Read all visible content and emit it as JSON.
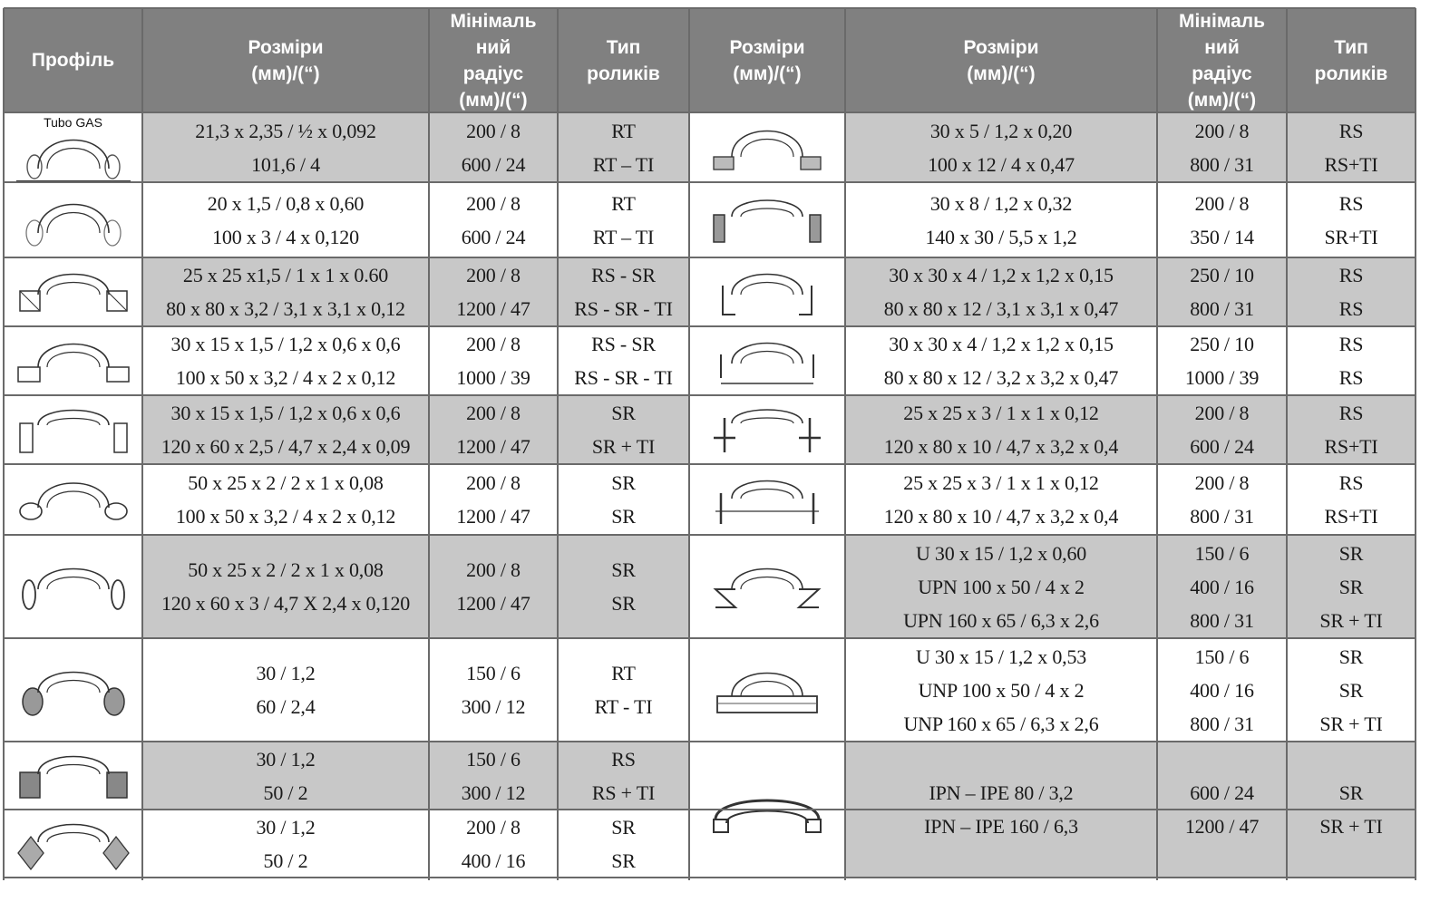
{
  "header": {
    "profile": [
      "Профіль"
    ],
    "sizes_left": [
      "Розміри",
      "(мм)/(“)"
    ],
    "radius_left": [
      "Мінімаль",
      "ний",
      "радіус",
      "(мм)/(“)"
    ],
    "rollers_left": [
      "Тип",
      "роликів"
    ],
    "sizes_mid": [
      "Розміри",
      "(мм)/(“)"
    ],
    "sizes_right": [
      "Розміри",
      "(мм)/(“)"
    ],
    "radius_right": [
      "Мінімаль",
      "ний",
      "радіус",
      "(мм)/(“)"
    ],
    "rollers_right": [
      "Тип",
      "роликів"
    ]
  },
  "tube_gas_label": "Tubo GAS",
  "left_rows": [
    {
      "profile_icon": "round-tube-on-rail-icon",
      "sizes": [
        "21,3 x 2,35 / ½  x 0,092",
        "101,6  /  4"
      ],
      "radius": [
        "200 / 8",
        "600 / 24"
      ],
      "rollers": [
        "RT",
        "RT – TI"
      ],
      "shade": true
    },
    {
      "profile_icon": "round-tube-icon",
      "sizes": [
        "20 x 1,5 / 0,8 x 0,60",
        "100 x 3 / 4 x 0,120"
      ],
      "radius": [
        "200 / 8",
        "600 / 24"
      ],
      "rollers": [
        "RT",
        "RT – TI"
      ],
      "shade": false
    },
    {
      "profile_icon": "square-tube-icon",
      "sizes": [
        "25 x 25 x1,5 / 1 x 1 x 0.60",
        "80 x 80 x 3,2 / 3,1 x 3,1 x 0,12"
      ],
      "radius": [
        "200 / 8",
        "1200 / 47"
      ],
      "rollers": [
        "RS - SR",
        "RS - SR - TI"
      ],
      "shade": true
    },
    {
      "profile_icon": "rect-tube-flat-icon",
      "sizes": [
        "30 x 15 x 1,5 / 1,2 x 0,6 x 0,6",
        "100 x 50 x 3,2 / 4 x 2 x 0,12"
      ],
      "radius": [
        "200 / 8",
        "1000 / 39"
      ],
      "rollers": [
        "RS - SR",
        "RS - SR - TI"
      ],
      "shade": false
    },
    {
      "profile_icon": "rect-tube-upright-icon",
      "sizes": [
        "30 x 15 x 1,5 / 1,2 x 0,6 x 0,6",
        "120 x 60 x 2,5 / 4,7 x 2,4 x 0,09"
      ],
      "radius": [
        "200 / 8",
        "1200 / 47"
      ],
      "rollers": [
        "SR",
        "SR + TI"
      ],
      "shade": true
    },
    {
      "profile_icon": "oval-tube-flat-icon",
      "sizes": [
        "50 x 25 x 2 / 2 x 1 x 0,08",
        "100 x 50 x 3,2 / 4 x 2 x 0,12"
      ],
      "radius": [
        "200 / 8",
        "1200 / 47"
      ],
      "rollers": [
        "SR",
        "SR"
      ],
      "shade": false
    },
    {
      "profile_icon": "oval-tube-upright-icon",
      "sizes": [
        "50 x 25 x 2 / 2 x 1 x  0,08",
        "120 x 60 x 3 / 4,7 X 2,4 x 0,120"
      ],
      "radius": [
        "200 / 8",
        "1200 / 47"
      ],
      "rollers": [
        "SR",
        "SR"
      ],
      "shade": true
    },
    {
      "profile_icon": "round-bar-icon",
      "sizes": [
        "30 / 1,2",
        "60 / 2,4"
      ],
      "radius": [
        "150 / 6",
        "300 / 12"
      ],
      "rollers": [
        "RT",
        "RT - TI"
      ],
      "shade": false
    },
    {
      "profile_icon": "square-bar-icon",
      "sizes": [
        "30 / 1,2",
        "50 / 2"
      ],
      "radius": [
        "150 / 6",
        "300 / 12"
      ],
      "rollers": [
        "RS",
        "RS + TI"
      ],
      "shade": true
    },
    {
      "profile_icon": "diamond-bar-icon",
      "sizes": [
        "30 / 1,2",
        "50 / 2"
      ],
      "radius": [
        "200 / 8",
        "400 / 16"
      ],
      "rollers": [
        "SR",
        "SR"
      ],
      "shade": false
    }
  ],
  "right_rows": [
    {
      "profile_icon": "flat-bar-flat-icon",
      "sizes": [
        "30 x 5 /  1,2 x 0,20",
        "100 x 12 / 4 x 0,47"
      ],
      "radius": [
        "200 / 8",
        "800 / 31"
      ],
      "rollers": [
        "RS",
        "RS+TI"
      ],
      "shade": true
    },
    {
      "profile_icon": "flat-bar-upright-icon",
      "sizes": [
        "30 x 8 / 1,2 x 0,32",
        "140 x 30 / 5,5 x 1,2"
      ],
      "radius": [
        "200 / 8",
        "350 / 14"
      ],
      "rollers": [
        "RS",
        "SR+TI"
      ],
      "shade": false
    },
    {
      "profile_icon": "angle-out-icon",
      "sizes": [
        "30 x 30 x 4 / 1,2 x 1,2 x 0,15",
        "80 x 80 x 12 / 3,1 x 3,1 x 0,47"
      ],
      "radius": [
        "250 / 10",
        "800 / 31"
      ],
      "rollers": [
        "RS",
        "RS"
      ],
      "shade": true
    },
    {
      "profile_icon": "angle-in-icon",
      "sizes": [
        "30 x 30 x 4 / 1,2 x 1,2 x 0,15",
        "80 x 80 x 12 / 3,2 x 3,2 x 0,47"
      ],
      "radius": [
        "250 / 10",
        "1000 / 39"
      ],
      "rollers": [
        "RS",
        "RS"
      ],
      "shade": false
    },
    {
      "profile_icon": "tee-out-icon",
      "sizes": [
        "25 x 25 x 3 / 1 x 1 x 0,12",
        "120 x 80 x 10 / 4,7 x 3,2 x 0,4"
      ],
      "radius": [
        "200 / 8",
        "600 / 24"
      ],
      "rollers": [
        "RS",
        "RS+TI"
      ],
      "shade": true
    },
    {
      "profile_icon": "tee-in-icon",
      "sizes": [
        "25 x 25 x 3 /  1 x 1 x 0,12",
        "120 x 80 x 10 / 4,7 x 3,2 x 0,4"
      ],
      "radius": [
        "200 / 8",
        "800 / 31"
      ],
      "rollers": [
        "RS",
        "RS+TI"
      ],
      "shade": false
    },
    {
      "profile_icon": "channel-u-icon",
      "sizes": [
        "U 30 x 15 / 1,2 x 0,60",
        "UPN 100 x 50 / 4 x 2",
        "UPN 160 x 65 / 6,3 x 2,6"
      ],
      "radius": [
        "150 / 6",
        "400 / 16",
        "800 / 31"
      ],
      "rollers": [
        "SR",
        "SR",
        "SR + TI"
      ],
      "shade": true
    },
    {
      "profile_icon": "channel-unp-icon",
      "sizes": [
        "U 30 x 15 / 1,2 x 0,53",
        "UNP 100 x 50 / 4 x 2",
        "UNP 160 x 65 / 6,3 x 2,6"
      ],
      "radius": [
        "150 / 6",
        "400 / 16",
        "800 / 31"
      ],
      "rollers": [
        "SR",
        "SR",
        "SR + TI"
      ],
      "shade": false
    },
    {
      "profile_icon": "i-beam-icon",
      "sizes": [
        "IPN – IPE 80 / 3,2",
        "IPN – IPE 160 / 6,3"
      ],
      "radius": [
        "600 / 24",
        "1200 / 47"
      ],
      "rollers": [
        "SR",
        "SR + TI"
      ],
      "shade": true
    }
  ]
}
